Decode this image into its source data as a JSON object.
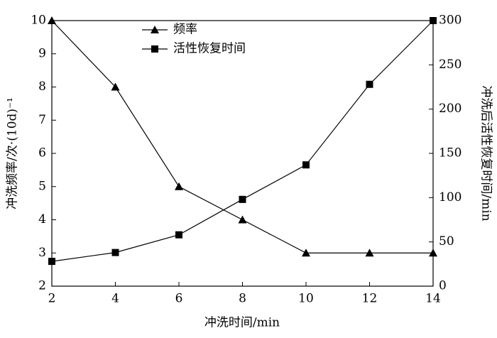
{
  "chart_data": {
    "type": "line",
    "x_label": "冲洗时间/min",
    "y_label": "冲洗频率/次·(10d)⁻¹",
    "y2_label": "冲洗后活性恢复时间/min",
    "x": [
      2,
      4,
      6,
      8,
      10,
      12,
      14
    ],
    "xlim": [
      2,
      14
    ],
    "xticks": [
      2,
      4,
      6,
      8,
      10,
      12,
      14
    ],
    "ylim": [
      2,
      10
    ],
    "yticks": [
      2,
      3,
      4,
      5,
      6,
      7,
      8,
      9,
      10
    ],
    "y2lim": [
      0,
      300
    ],
    "y2ticks": [
      0,
      50,
      100,
      150,
      200,
      250,
      300
    ],
    "legend": "upper center",
    "series": [
      {
        "name": "频率",
        "color": "#000000",
        "marker": "triangle",
        "values": [
          10,
          8,
          5,
          4,
          3,
          3,
          3
        ]
      },
      {
        "name": "活性恢复时间",
        "color": "#000000",
        "marker": "square",
        "axis": "y2",
        "values": [
          28,
          38,
          58,
          98,
          137,
          228,
          300
        ]
      }
    ]
  }
}
